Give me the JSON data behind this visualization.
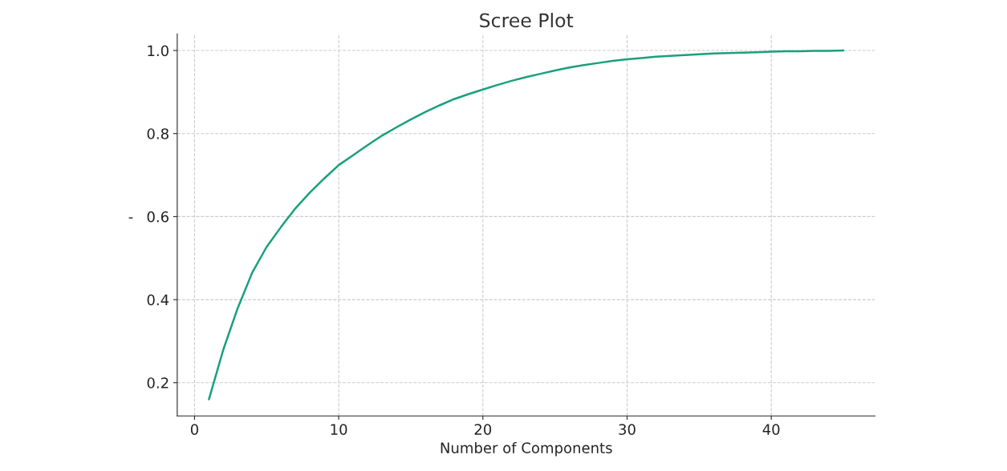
{
  "chart_data": {
    "type": "line",
    "title": "Scree Plot",
    "xlabel": "Number of Components",
    "ylabel": "-",
    "x": [
      1,
      2,
      3,
      4,
      5,
      6,
      7,
      8,
      9,
      10,
      11,
      12,
      13,
      14,
      15,
      16,
      17,
      18,
      19,
      20,
      21,
      22,
      23,
      24,
      25,
      26,
      27,
      28,
      29,
      30,
      31,
      32,
      33,
      34,
      35,
      36,
      37,
      38,
      39,
      40,
      41,
      42,
      43,
      44,
      45
    ],
    "series": [
      {
        "color": "#18a07c",
        "values": [
          0.16,
          0.28,
          0.38,
          0.465,
          0.527,
          0.575,
          0.62,
          0.658,
          0.692,
          0.724,
          0.748,
          0.772,
          0.795,
          0.815,
          0.834,
          0.852,
          0.868,
          0.883,
          0.895,
          0.906,
          0.917,
          0.927,
          0.936,
          0.944,
          0.952,
          0.959,
          0.965,
          0.97,
          0.975,
          0.979,
          0.982,
          0.985,
          0.987,
          0.989,
          0.991,
          0.993,
          0.994,
          0.995,
          0.996,
          0.997,
          0.998,
          0.998,
          0.999,
          0.999,
          1.0
        ]
      }
    ],
    "xlim": [
      -1.2,
      47.2
    ],
    "ylim": [
      0.12,
      1.04
    ],
    "xticks": [
      0,
      10,
      20,
      30,
      40
    ],
    "yticks": [
      0.2,
      0.4,
      0.6,
      0.8,
      {
        "value": 1.0,
        "label": "1.0"
      }
    ],
    "grid": true,
    "line_style": "solid",
    "marker": "none"
  }
}
